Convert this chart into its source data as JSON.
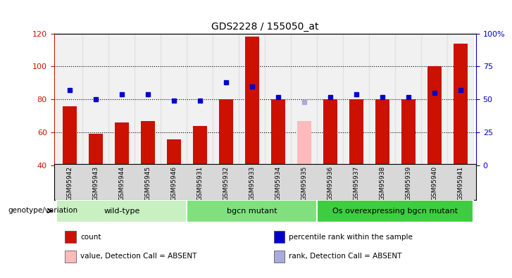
{
  "title": "GDS2228 / 155050_at",
  "samples": [
    "GSM95942",
    "GSM95943",
    "GSM95944",
    "GSM95945",
    "GSM95946",
    "GSM95931",
    "GSM95932",
    "GSM95933",
    "GSM95934",
    "GSM95935",
    "GSM95936",
    "GSM95937",
    "GSM95938",
    "GSM95939",
    "GSM95940",
    "GSM95941"
  ],
  "count_values": [
    76,
    59,
    66,
    67,
    56,
    64,
    80,
    118,
    80,
    67,
    80,
    80,
    80,
    80,
    100,
    114
  ],
  "count_absent": [
    false,
    false,
    false,
    false,
    false,
    false,
    false,
    false,
    false,
    true,
    false,
    false,
    false,
    false,
    false,
    false
  ],
  "rank_values": [
    57,
    50,
    54,
    54,
    49,
    49,
    63,
    60,
    52,
    48,
    52,
    54,
    52,
    52,
    55,
    57
  ],
  "rank_absent": [
    false,
    false,
    false,
    false,
    false,
    false,
    false,
    false,
    false,
    true,
    false,
    false,
    false,
    false,
    false,
    false
  ],
  "ylim_left": [
    40,
    120
  ],
  "ylim_right": [
    0,
    100
  ],
  "yticks_left": [
    40,
    60,
    80,
    100,
    120
  ],
  "yticks_right": [
    0,
    25,
    50,
    75,
    100
  ],
  "ytick_labels_right": [
    "0",
    "25",
    "50",
    "75",
    "100%"
  ],
  "groups": [
    {
      "label": "wild-type",
      "start": 0,
      "end": 5,
      "color": "#c8f0c0"
    },
    {
      "label": "bgcn mutant",
      "start": 5,
      "end": 10,
      "color": "#80e080"
    },
    {
      "label": "Os overexpressing bgcn mutant",
      "start": 10,
      "end": 16,
      "color": "#40cc40"
    }
  ],
  "bar_color_normal": "#cc1100",
  "bar_color_absent": "#ffbbbb",
  "rank_color_normal": "#0000cc",
  "rank_color_absent": "#aaaadd",
  "genotype_label": "genotype/variation",
  "legend_items": [
    {
      "label": "count",
      "color": "#cc1100"
    },
    {
      "label": "percentile rank within the sample",
      "color": "#0000cc"
    },
    {
      "label": "value, Detection Call = ABSENT",
      "color": "#ffbbbb"
    },
    {
      "label": "rank, Detection Call = ABSENT",
      "color": "#aaaadd"
    }
  ],
  "axis_color_left": "#cc1100",
  "axis_color_right": "#0000cc"
}
